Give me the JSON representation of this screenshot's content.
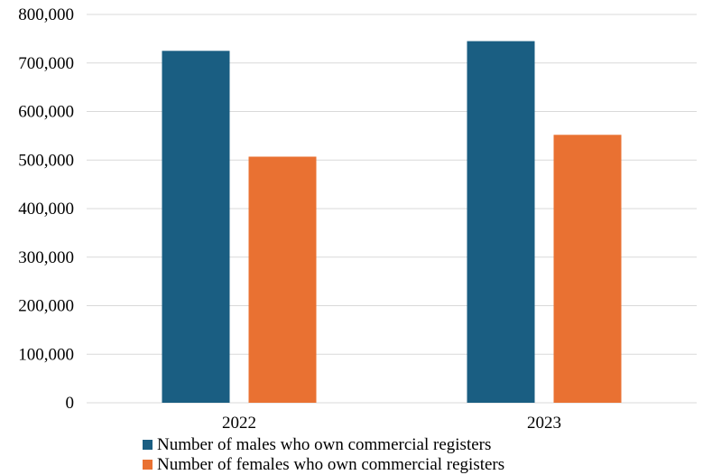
{
  "chart_data": {
    "type": "bar",
    "title": "",
    "xlabel": "",
    "ylabel": "",
    "categories": [
      "2022",
      "2023"
    ],
    "series": [
      {
        "name": "Number of males who own commercial registers",
        "color": "#1a5e82",
        "values": [
          725000,
          745000
        ]
      },
      {
        "name": "Number of females who own commercial registers",
        "color": "#e97132",
        "values": [
          507000,
          552000
        ]
      }
    ],
    "ylim": [
      0,
      800000
    ],
    "y_ticks": [
      {
        "value": 0,
        "label": "0"
      },
      {
        "value": 100000,
        "label": "100,000"
      },
      {
        "value": 200000,
        "label": "200,000"
      },
      {
        "value": 300000,
        "label": "300,000"
      },
      {
        "value": 400000,
        "label": "400,000"
      },
      {
        "value": 500000,
        "label": "500,000"
      },
      {
        "value": 600000,
        "label": "600,000"
      },
      {
        "value": 700000,
        "label": "700,000"
      },
      {
        "value": 800000,
        "label": "800,000"
      }
    ],
    "grid": true,
    "legend_position": "bottom-center"
  }
}
